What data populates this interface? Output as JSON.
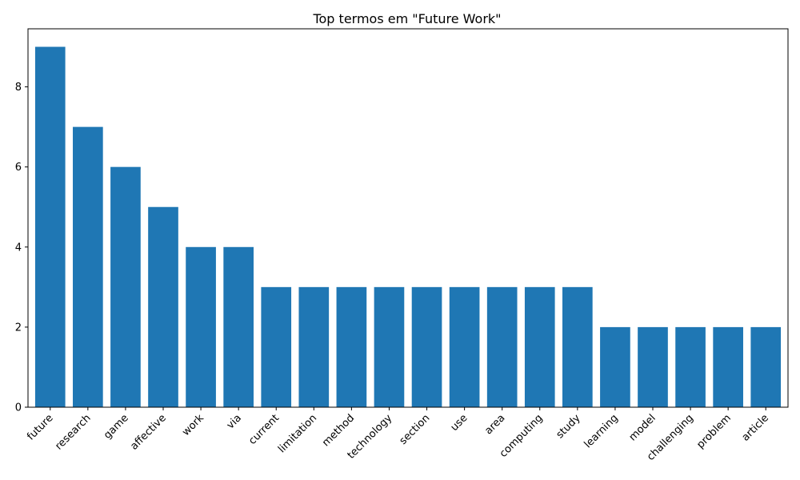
{
  "chart_data": {
    "type": "bar",
    "title": "Top termos em \"Future Work\"",
    "xlabel": "",
    "ylabel": "",
    "categories": [
      "future",
      "research",
      "game",
      "affective",
      "work",
      "via",
      "current",
      "limitation",
      "method",
      "technology",
      "section",
      "use",
      "area",
      "computing",
      "study",
      "learning",
      "model",
      "challenging",
      "problem",
      "article"
    ],
    "values": [
      9,
      7,
      6,
      5,
      4,
      4,
      3,
      3,
      3,
      3,
      3,
      3,
      3,
      3,
      3,
      2,
      2,
      2,
      2,
      2
    ],
    "ylim": [
      0,
      9.45
    ],
    "yticks": [
      0,
      2,
      4,
      6,
      8
    ],
    "grid": false,
    "bar_color": "#1f77b4",
    "x_tick_rotation_deg": 45
  }
}
